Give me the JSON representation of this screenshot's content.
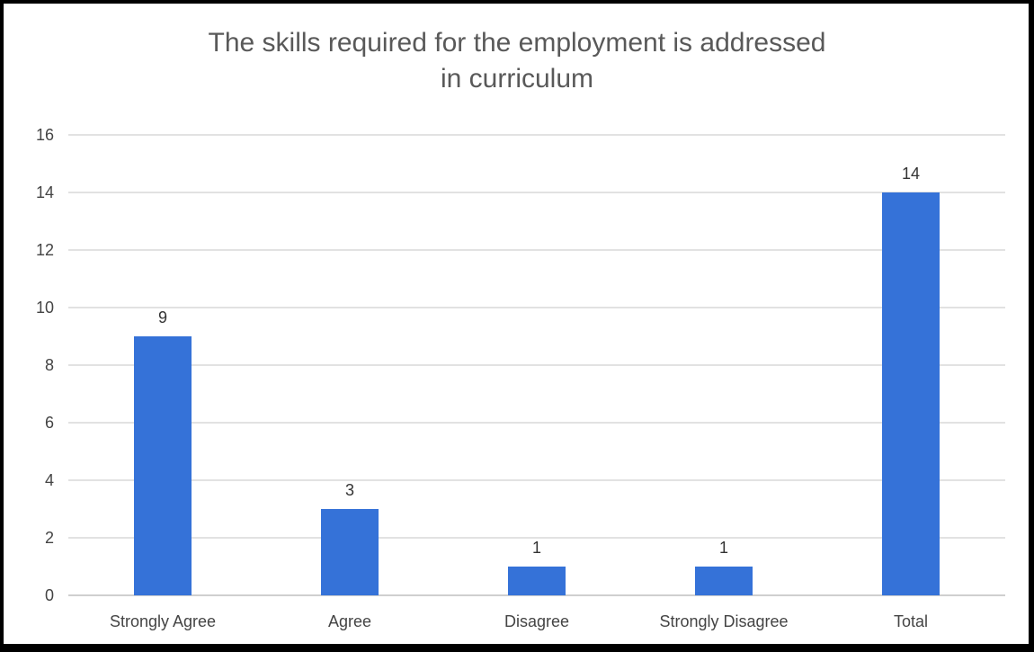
{
  "chart_data": {
    "type": "bar",
    "title": "The skills required for the employment is addressed\nin curriculum",
    "categories": [
      "Strongly Agree",
      "Agree",
      "Disagree",
      "Strongly Disagree",
      "Total"
    ],
    "values": [
      9,
      3,
      1,
      1,
      14
    ],
    "data_labels": [
      "9",
      "3",
      "1",
      "1",
      "14"
    ],
    "ylim": [
      0,
      16
    ],
    "yticks": [
      0,
      2,
      4,
      6,
      8,
      10,
      12,
      14,
      16
    ],
    "grid": true,
    "legend": "none",
    "bar_color": "#3572d8",
    "gridline_color": "#d9d9d9"
  }
}
